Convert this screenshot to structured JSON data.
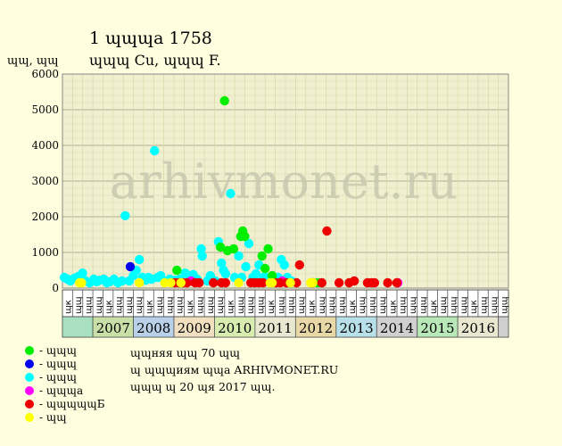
{
  "title_line1": "1 ɰɰɰа 1758",
  "title_line2": "ɰɰɰ Cu, ɰɰɰ F.",
  "y_unit_label": "ɰɰ, ɰɰ",
  "watermark": "arhivmonet.ru",
  "note": [
    "ɰɰняя ɰɰ 70 ɰɰ",
    "ɰ ɰɰɰиям ɰɰа ARHIVMONET.RU",
    "ɰɰɰ ɰ 20 ɰя 2017 ɰɰ."
  ],
  "colors": {
    "background": "#ffffe0",
    "plot_background": "#f0f0d0",
    "grid": "#d8d8a8",
    "green": "#00ee00",
    "blue": "#0000ee",
    "cyan": "#00ffff",
    "magenta": "#ff00ff",
    "red": "#ee0000",
    "yellow": "#ffff00"
  },
  "chart_data": {
    "type": "scatter",
    "ylim": [
      0,
      6000
    ],
    "yticks": [
      0,
      1000,
      2000,
      3000,
      4000,
      5000,
      6000
    ],
    "ytick_labels": [
      "0",
      "1000",
      "2000",
      "3000",
      "4000",
      "5000",
      "6000"
    ],
    "grid": true,
    "quarter_labels": [
      "ɰк",
      "ɰɰ",
      "ɰɰ",
      "ɰɰ",
      "ɰк",
      "ɰɰ",
      "ɰɰ",
      "ɰɰ",
      "ɰк",
      "ɰɰ",
      "ɰɰ",
      "ɰɰ",
      "ɰк",
      "ɰɰ",
      "ɰɰ",
      "ɰɰ",
      "ɰк",
      "ɰɰ",
      "ɰɰ",
      "ɰɰ",
      "ɰк",
      "ɰɰ",
      "ɰɰ",
      "ɰɰ",
      "ɰк",
      "ɰɰ",
      "ɰɰ",
      "ɰɰ",
      "ɰк",
      "ɰɰ",
      "ɰɰ",
      "ɰɰ",
      "ɰк",
      "ɰɰ",
      "ɰɰ",
      "ɰɰ",
      "ɰк",
      "ɰɰ",
      "ɰɰ",
      "ɰɰ",
      "ɰк",
      "ɰɰ",
      "ɰɰ",
      "ɰɰ"
    ],
    "years": [
      {
        "label": "",
        "color": "#a8e0c0"
      },
      {
        "label": "2007",
        "color": "#c8e0a8"
      },
      {
        "label": "2008",
        "color": "#b8d0e8"
      },
      {
        "label": "2009",
        "color": "#f0e0c0"
      },
      {
        "label": "2010",
        "color": "#d8ecb0"
      },
      {
        "label": "2011",
        "color": "#e8e8d0"
      },
      {
        "label": "2012",
        "color": "#e8d8a8"
      },
      {
        "label": "2013",
        "color": "#b8e0e8"
      },
      {
        "label": "2014",
        "color": "#d0d0d0"
      },
      {
        "label": "2015",
        "color": "#b8e8b8"
      },
      {
        "label": "2016",
        "color": "#e8e8d0"
      },
      {
        "label": "",
        "color": "#cfcfcf"
      }
    ],
    "legend": [
      {
        "color": "green",
        "label": "- ɰɰɰ"
      },
      {
        "color": "blue",
        "label": "- ɰɰɰ"
      },
      {
        "color": "cyan",
        "label": "- ɰɰɰ"
      },
      {
        "color": "magenta",
        "label": "- ɰɰɰа"
      },
      {
        "color": "red",
        "label": "- ɰɰɰɰɰБ"
      },
      {
        "color": "yellow",
        "label": "- ɰɰ"
      }
    ],
    "series": {
      "cyan": [
        [
          0.1,
          300
        ],
        [
          0.4,
          250
        ],
        [
          0.7,
          200
        ],
        [
          1.1,
          280
        ],
        [
          1.5,
          330
        ],
        [
          1.9,
          420
        ],
        [
          2.2,
          200
        ],
        [
          2.6,
          150
        ],
        [
          3.0,
          250
        ],
        [
          3.3,
          180
        ],
        [
          3.6,
          220
        ],
        [
          4.0,
          250
        ],
        [
          4.3,
          150
        ],
        [
          4.6,
          180
        ],
        [
          5.0,
          250
        ],
        [
          5.4,
          150
        ],
        [
          5.8,
          200
        ],
        [
          6.1,
          2030
        ],
        [
          6.5,
          200
        ],
        [
          6.9,
          350
        ],
        [
          7.2,
          500
        ],
        [
          7.5,
          800
        ],
        [
          7.8,
          300
        ],
        [
          8.1,
          220
        ],
        [
          8.4,
          300
        ],
        [
          8.7,
          250
        ],
        [
          9.0,
          3850
        ],
        [
          9.3,
          300
        ],
        [
          9.6,
          350
        ],
        [
          10.0,
          200
        ],
        [
          10.5,
          250
        ],
        [
          11.0,
          220
        ],
        [
          11.5,
          250
        ],
        [
          12.0,
          420
        ],
        [
          12.4,
          350
        ],
        [
          12.8,
          380
        ],
        [
          13.2,
          250
        ],
        [
          13.6,
          1100
        ],
        [
          13.7,
          900
        ],
        [
          14.2,
          200
        ],
        [
          14.5,
          350
        ],
        [
          15.0,
          200
        ],
        [
          15.3,
          1300
        ],
        [
          15.6,
          700
        ],
        [
          15.8,
          500
        ],
        [
          16.0,
          400
        ],
        [
          16.5,
          2650
        ],
        [
          16.9,
          300
        ],
        [
          17.3,
          900
        ],
        [
          17.6,
          300
        ],
        [
          18.0,
          600
        ],
        [
          18.3,
          1250
        ],
        [
          18.7,
          300
        ],
        [
          19.0,
          400
        ],
        [
          19.3,
          650
        ],
        [
          19.7,
          300
        ],
        [
          20.0,
          300
        ],
        [
          20.4,
          150
        ],
        [
          20.8,
          200
        ],
        [
          21.2,
          300
        ],
        [
          21.5,
          800
        ],
        [
          21.8,
          650
        ],
        [
          22.1,
          300
        ],
        [
          22.5,
          200
        ]
      ],
      "green": [
        [
          11.2,
          500
        ],
        [
          15.5,
          1150
        ],
        [
          15.9,
          5250
        ],
        [
          16.2,
          1050
        ],
        [
          16.8,
          1100
        ],
        [
          17.5,
          1450
        ],
        [
          17.7,
          1600
        ],
        [
          17.9,
          1450
        ],
        [
          19.6,
          900
        ],
        [
          19.9,
          550
        ],
        [
          20.2,
          1100
        ],
        [
          20.6,
          350
        ],
        [
          25.1,
          150
        ]
      ],
      "blue": [
        [
          6.6,
          600
        ]
      ],
      "magenta": [
        [
          12.6,
          200
        ],
        [
          21.6,
          200
        ],
        [
          33.0,
          150
        ]
      ],
      "red": [
        [
          11.0,
          150
        ],
        [
          11.4,
          150
        ],
        [
          11.8,
          150
        ],
        [
          12.2,
          150
        ],
        [
          13.0,
          150
        ],
        [
          13.4,
          150
        ],
        [
          14.8,
          150
        ],
        [
          15.6,
          150
        ],
        [
          16.0,
          150
        ],
        [
          18.5,
          150
        ],
        [
          18.9,
          150
        ],
        [
          19.3,
          150
        ],
        [
          19.7,
          150
        ],
        [
          21.0,
          150
        ],
        [
          21.4,
          150
        ],
        [
          22.0,
          150
        ],
        [
          23.0,
          150
        ],
        [
          23.3,
          650
        ],
        [
          24.6,
          150
        ],
        [
          25.5,
          150
        ],
        [
          26.0,
          1600
        ],
        [
          27.2,
          150
        ],
        [
          28.2,
          150
        ],
        [
          28.7,
          200
        ],
        [
          30.0,
          150
        ],
        [
          30.4,
          150
        ],
        [
          30.7,
          150
        ],
        [
          32.0,
          150
        ],
        [
          32.9,
          150
        ]
      ],
      "yellow": [
        [
          1.6,
          150
        ],
        [
          1.8,
          150
        ],
        [
          7.5,
          150
        ],
        [
          10.0,
          150
        ],
        [
          10.6,
          150
        ],
        [
          11.6,
          150
        ],
        [
          17.3,
          150
        ],
        [
          20.4,
          150
        ],
        [
          20.6,
          150
        ],
        [
          22.4,
          150
        ],
        [
          24.4,
          150
        ],
        [
          24.6,
          150
        ]
      ]
    }
  }
}
